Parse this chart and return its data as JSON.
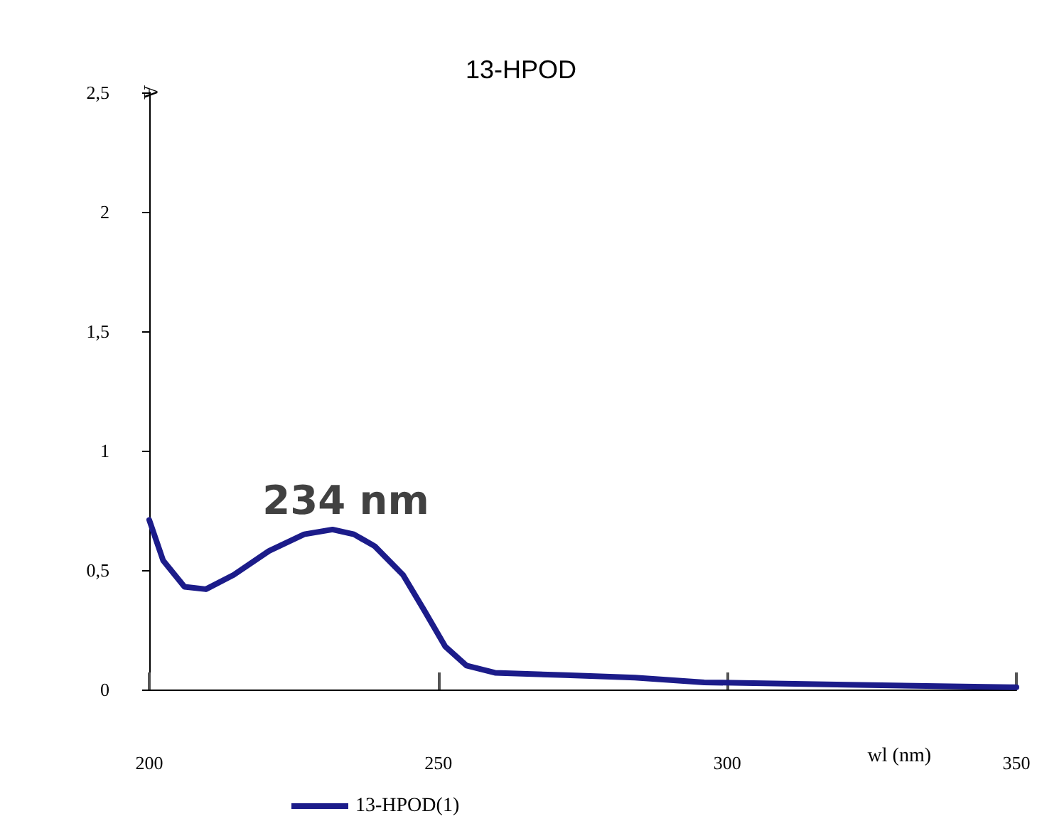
{
  "chart_data": {
    "type": "line",
    "title": "13-HPOD",
    "xlabel": "wl (nm)",
    "ylabel": "A",
    "series": [
      {
        "name": "13-HPOD(1)",
        "color": "#1c1c8a",
        "x": [
          200,
          202.4,
          206.1,
          209.8,
          214.6,
          220.7,
          226.8,
          231.7,
          235.4,
          239,
          243.9,
          247.6,
          251.2,
          254.9,
          259.8,
          272,
          284,
          296,
          320.7,
          348.8,
          350
        ],
        "values": [
          0.71,
          0.54,
          0.43,
          0.42,
          0.48,
          0.58,
          0.65,
          0.67,
          0.65,
          0.6,
          0.48,
          0.33,
          0.18,
          0.1,
          0.07,
          0.06,
          0.05,
          0.03,
          0.02,
          0.01,
          0.01
        ]
      }
    ],
    "annotations": [
      {
        "text": "234 nm",
        "x": 234,
        "y": 0.66
      }
    ],
    "xlim": [
      200,
      350
    ],
    "xticks": [
      200,
      250,
      300,
      350
    ],
    "ylim": [
      0,
      2.5
    ],
    "yticks": [
      0,
      {
        "value": 0.5,
        "label": "0,5"
      },
      1,
      {
        "value": 1.5,
        "label": "1,5"
      },
      2,
      {
        "value": 2.5,
        "label": "2,5"
      }
    ],
    "grid": false,
    "legend": "bottom left",
    "marker": "none",
    "line_style": "solid"
  }
}
